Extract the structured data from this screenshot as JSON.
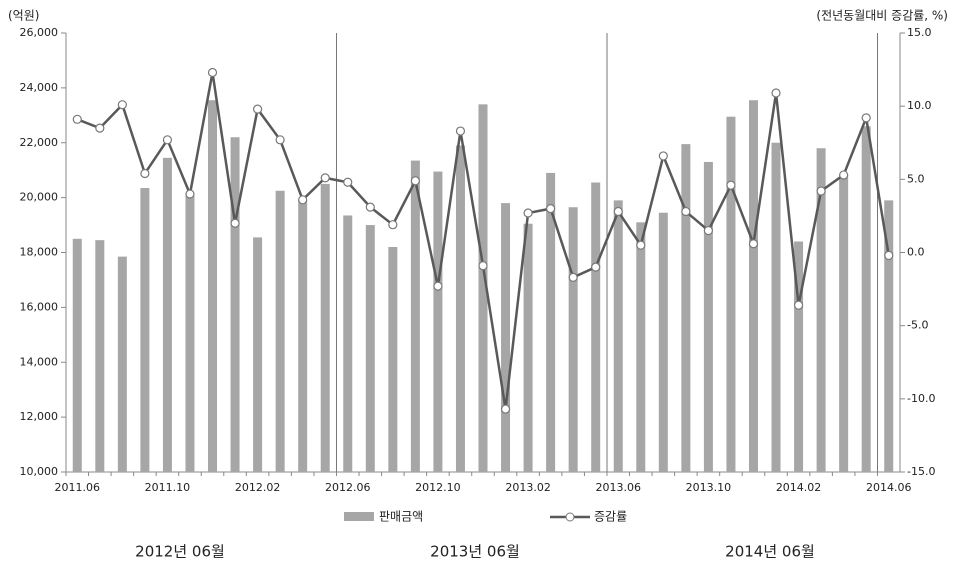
{
  "chart_data": {
    "type": "bar",
    "y_unit_label": "(억원)",
    "y2_unit_label": "(전년동월대비 증감률, %)",
    "categories": [
      "2011.06",
      null,
      null,
      null,
      "2011.10",
      null,
      null,
      null,
      "2012.02",
      null,
      null,
      null,
      "2012.06",
      null,
      null,
      null,
      "2012.10",
      null,
      null,
      null,
      "2013.02",
      null,
      null,
      null,
      "2013.06",
      null,
      null,
      null,
      "2013.10",
      null,
      null,
      null,
      "2014.02",
      null,
      null,
      null,
      "2014.06"
    ],
    "series": [
      {
        "name": "판매금액",
        "type": "bar",
        "color": "#a6a6a6",
        "values": [
          18500,
          18450,
          17850,
          20350,
          21450,
          20100,
          23550,
          22200,
          18550,
          20250,
          19900,
          20500,
          19350,
          19000,
          18200,
          21350,
          20950,
          21900,
          23400,
          19800,
          19050,
          20900,
          19650,
          20550,
          19900,
          19100,
          19450,
          21950,
          21300,
          22950,
          23550,
          22000,
          18400,
          21800,
          20850,
          22600,
          19900
        ]
      },
      {
        "name": "증감률",
        "type": "line",
        "axis": "y2",
        "color": "#595959",
        "values": [
          9.1,
          8.5,
          10.1,
          5.4,
          7.7,
          4.0,
          12.3,
          2.0,
          9.8,
          7.7,
          3.6,
          5.1,
          4.8,
          3.1,
          1.9,
          4.9,
          -2.3,
          8.3,
          -0.9,
          -10.7,
          2.7,
          3.0,
          -1.7,
          -1.0,
          2.8,
          0.5,
          6.6,
          2.8,
          1.5,
          4.6,
          0.6,
          10.9,
          -3.6,
          4.2,
          5.3,
          9.2,
          -0.2
        ]
      }
    ],
    "ylim": [
      10000,
      26000
    ],
    "yticks": [
      {
        "value": 10000,
        "label": "10,000"
      },
      {
        "value": 12000,
        "label": "12,000"
      },
      {
        "value": 14000,
        "label": "14,000"
      },
      {
        "value": 16000,
        "label": "16,000"
      },
      {
        "value": 18000,
        "label": "18,000"
      },
      {
        "value": 20000,
        "label": "20,000"
      },
      {
        "value": 22000,
        "label": "22,000"
      },
      {
        "value": 24000,
        "label": "24,000"
      },
      {
        "value": 26000,
        "label": "26,000"
      }
    ],
    "y2lim": [
      -15,
      15
    ],
    "y2ticks": [
      {
        "value": -15,
        "label": "-15.0"
      },
      {
        "value": -10,
        "label": "-10.0"
      },
      {
        "value": -5,
        "label": "-5.0"
      },
      {
        "value": 0,
        "label": "0.0"
      },
      {
        "value": 5,
        "label": "5.0"
      },
      {
        "value": 10,
        "label": "10.0"
      },
      {
        "value": 15,
        "label": "15.0"
      }
    ],
    "grid": false,
    "legend": "bottom",
    "annotations": [
      "2012년 06월",
      "2013년 06월",
      "2014년 06월"
    ]
  }
}
